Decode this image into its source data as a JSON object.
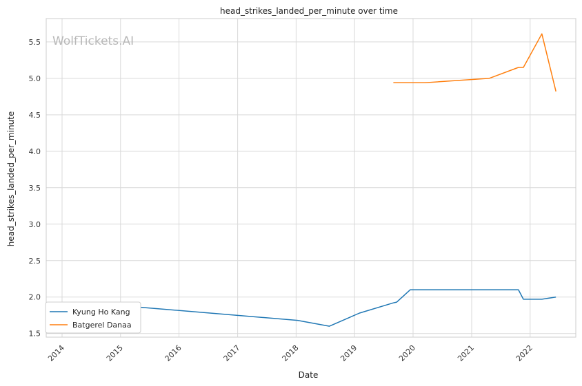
{
  "chart_data": {
    "type": "line",
    "title": "head_strikes_landed_per_minute over time",
    "xlabel": "Date",
    "ylabel": "head_strikes_landed_per_minute",
    "watermark": "WolfTickets.AI",
    "x_tick_labels": [
      "2014",
      "2015",
      "2016",
      "2017",
      "2018",
      "2019",
      "2020",
      "2021",
      "2022"
    ],
    "y_tick_labels": [
      "1.5",
      "2.0",
      "2.5",
      "3.0",
      "3.5",
      "4.0",
      "4.5",
      "5.0",
      "5.5"
    ],
    "xlim": [
      "2013-09-24",
      "2022-10-13"
    ],
    "ylim": [
      1.45,
      5.82
    ],
    "grid": true,
    "legend_position": "lower-left",
    "series": [
      {
        "name": "Kyung Ho Kang",
        "color": "#1f77b4",
        "points": [
          {
            "x": "2014-01-01",
            "y": 1.92
          },
          {
            "x": "2014-09-20",
            "y": 1.92
          },
          {
            "x": "2015-03-10",
            "y": 1.87
          },
          {
            "x": "2018-01-10",
            "y": 1.68
          },
          {
            "x": "2018-07-28",
            "y": 1.6
          },
          {
            "x": "2019-02-01",
            "y": 1.78
          },
          {
            "x": "2019-08-31",
            "y": 1.92
          },
          {
            "x": "2019-09-21",
            "y": 1.93
          },
          {
            "x": "2019-12-15",
            "y": 2.1
          },
          {
            "x": "2021-10-20",
            "y": 2.1
          },
          {
            "x": "2021-11-20",
            "y": 1.97
          },
          {
            "x": "2022-03-15",
            "y": 1.97
          },
          {
            "x": "2022-06-11",
            "y": 2.0
          }
        ]
      },
      {
        "name": "Batgerel Danaa",
        "color": "#ff7f0e",
        "points": [
          {
            "x": "2019-08-31",
            "y": 4.94
          },
          {
            "x": "2020-03-15",
            "y": 4.94
          },
          {
            "x": "2021-04-20",
            "y": 5.0
          },
          {
            "x": "2021-10-20",
            "y": 5.15
          },
          {
            "x": "2021-11-20",
            "y": 5.15
          },
          {
            "x": "2022-03-15",
            "y": 5.61
          },
          {
            "x": "2022-06-11",
            "y": 4.82
          }
        ]
      }
    ]
  }
}
